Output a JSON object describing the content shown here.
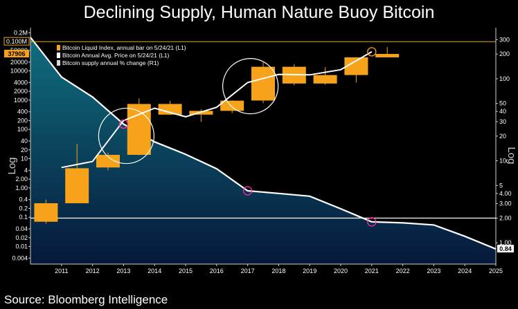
{
  "title": "Declining Supply, Human Nature Buoy Bitcoin",
  "source": "Source: Bloomberg Intelligence",
  "colors": {
    "background": "#000000",
    "bar": "#f7a21b",
    "price_line": "#ffffff",
    "supply_area_top": "#0f6e7e",
    "supply_area_bottom": "#06183a",
    "highlight_circle": "#ffffff",
    "marker": "#ff2fa8",
    "reference_line": "#ffffff",
    "current_tag": "#f7a21b"
  },
  "chart_data": {
    "type": "bar",
    "legend_position": "top-left",
    "grid": false,
    "legend": [
      {
        "label": "Bitcoin Liquid Index, annual bar on 5/24/21 (L1)",
        "swatch": "bar"
      },
      {
        "label": "Bitcoin Annual Avg. Price on 5/24/21 (L1)",
        "swatch": "line"
      },
      {
        "label": "Bitcoin supply annual % change (R1)",
        "swatch": "area"
      }
    ],
    "left_axis": {
      "label": "Log",
      "scale": "log",
      "range": [
        0.0025,
        300000
      ],
      "ticks": [
        {
          "value": 0.004,
          "label": "0.004"
        },
        {
          "value": 0.01,
          "label": "0.01"
        },
        {
          "value": 0.02,
          "label": "0.02"
        },
        {
          "value": 0.04,
          "label": "0.04"
        },
        {
          "value": 0.1,
          "label": "0.1"
        },
        {
          "value": 0.2,
          "label": "0.2"
        },
        {
          "value": 0.4,
          "label": "0.4"
        },
        {
          "value": 1,
          "label": "1.00"
        },
        {
          "value": 2,
          "label": "2.00"
        },
        {
          "value": 4,
          "label": "4"
        },
        {
          "value": 10,
          "label": "10"
        },
        {
          "value": 20,
          "label": "20"
        },
        {
          "value": 40,
          "label": "40"
        },
        {
          "value": 100,
          "label": "100"
        },
        {
          "value": 200,
          "label": "200"
        },
        {
          "value": 400,
          "label": "400"
        },
        {
          "value": 1000,
          "label": "1000"
        },
        {
          "value": 2000,
          "label": "2000"
        },
        {
          "value": 4000,
          "label": "4000"
        },
        {
          "value": 10000,
          "label": "10000"
        },
        {
          "value": 20000,
          "label": "20000"
        },
        {
          "value": 50000,
          "label": "50000"
        },
        {
          "value": 200000,
          "label": "0.2M"
        }
      ],
      "current_value": {
        "value": 37906,
        "label": "37906"
      },
      "reference_value": {
        "value": 100000,
        "label": "0.100M"
      }
    },
    "right_axis": {
      "label": "Log",
      "scale": "log",
      "range": [
        0.55,
        420
      ],
      "ticks": [
        {
          "value": 1,
          "label": "1.00"
        },
        {
          "value": 2,
          "label": "2.00"
        },
        {
          "value": 3,
          "label": "3.00"
        },
        {
          "value": 4,
          "label": "4.00"
        },
        {
          "value": 5,
          "label": "5"
        },
        {
          "value": 10,
          "label": "10"
        },
        {
          "value": 20,
          "label": "20"
        },
        {
          "value": 30,
          "label": "30"
        },
        {
          "value": 40,
          "label": "40"
        },
        {
          "value": 50,
          "label": "50"
        },
        {
          "value": 100,
          "label": "100"
        },
        {
          "value": 200,
          "label": "200"
        },
        {
          "value": 300,
          "label": "300"
        }
      ],
      "current_value": {
        "value": 0.84,
        "label": "0.84"
      },
      "reference_value": {
        "value": 2,
        "label": "2.00"
      }
    },
    "x_axis": {
      "range": [
        2010,
        2025
      ],
      "ticks": [
        2011,
        2012,
        2013,
        2014,
        2015,
        2016,
        2017,
        2018,
        2019,
        2020,
        2021,
        2022,
        2023,
        2024,
        2025
      ]
    },
    "series": [
      {
        "name": "Bitcoin Liquid Index, annual bar on 5/24/21 (L1)",
        "type": "candlestick",
        "axis": "left",
        "points": [
          {
            "year": 2010,
            "open": 0.07,
            "close": 0.3,
            "high": 0.4,
            "low": 0.06
          },
          {
            "year": 2011,
            "open": 0.3,
            "close": 4.7,
            "high": 32,
            "low": 0.3
          },
          {
            "year": 2012,
            "open": 5,
            "close": 13.5,
            "high": 16,
            "low": 4
          },
          {
            "year": 2013,
            "open": 13.5,
            "close": 740,
            "high": 1150,
            "low": 13
          },
          {
            "year": 2014,
            "open": 740,
            "close": 320,
            "high": 950,
            "low": 310
          },
          {
            "year": 2015,
            "open": 320,
            "close": 430,
            "high": 490,
            "low": 180
          },
          {
            "year": 2016,
            "open": 430,
            "close": 960,
            "high": 1000,
            "low": 360
          },
          {
            "year": 2017,
            "open": 970,
            "close": 13800,
            "high": 19500,
            "low": 780
          },
          {
            "year": 2018,
            "open": 13800,
            "close": 3700,
            "high": 17000,
            "low": 3200
          },
          {
            "year": 2019,
            "open": 3700,
            "close": 7200,
            "high": 13500,
            "low": 3400
          },
          {
            "year": 2020,
            "open": 7200,
            "close": 29000,
            "high": 29300,
            "low": 4000
          },
          {
            "year": 2021,
            "open": 29000,
            "close": 37906,
            "high": 64800,
            "low": 29000
          }
        ]
      },
      {
        "name": "Bitcoin Annual Avg. Price on 5/24/21 (L1)",
        "type": "line",
        "axis": "left",
        "points": [
          {
            "year": 2011,
            "value": 5
          },
          {
            "year": 2012,
            "value": 8
          },
          {
            "year": 2013,
            "value": 200
          },
          {
            "year": 2014,
            "value": 530
          },
          {
            "year": 2015,
            "value": 270
          },
          {
            "year": 2016,
            "value": 570
          },
          {
            "year": 2017,
            "value": 4000
          },
          {
            "year": 2018,
            "value": 7600
          },
          {
            "year": 2019,
            "value": 7300
          },
          {
            "year": 2020,
            "value": 11000
          },
          {
            "year": 2021,
            "value": 45000
          }
        ]
      },
      {
        "name": "Bitcoin supply annual % change (R1)",
        "type": "area",
        "axis": "right",
        "points": [
          {
            "year": 2010,
            "value": 320
          },
          {
            "year": 2011,
            "value": 105
          },
          {
            "year": 2012,
            "value": 60
          },
          {
            "year": 2013,
            "value": 28
          },
          {
            "year": 2014,
            "value": 17
          },
          {
            "year": 2015,
            "value": 12
          },
          {
            "year": 2016,
            "value": 8
          },
          {
            "year": 2017,
            "value": 4.3
          },
          {
            "year": 2018,
            "value": 4.0
          },
          {
            "year": 2019,
            "value": 3.7
          },
          {
            "year": 2020,
            "value": 2.6
          },
          {
            "year": 2021,
            "value": 1.8
          },
          {
            "year": 2022,
            "value": 1.75
          },
          {
            "year": 2023,
            "value": 1.65
          },
          {
            "year": 2024,
            "value": 1.2
          },
          {
            "year": 2025,
            "value": 0.84
          }
        ]
      }
    ],
    "annotations": [
      {
        "type": "circle",
        "year": 2013,
        "value": 60,
        "axis": "left"
      },
      {
        "type": "circle",
        "year": 2017,
        "value": 3000,
        "axis": "left"
      },
      {
        "type": "marker",
        "year": 2013,
        "value": 28,
        "axis": "right",
        "color": "marker"
      },
      {
        "type": "marker",
        "year": 2017,
        "value": 4.3,
        "axis": "right",
        "color": "marker"
      },
      {
        "type": "marker",
        "year": 2021,
        "value": 1.8,
        "axis": "right",
        "color": "marker"
      },
      {
        "type": "marker",
        "year": 2021,
        "value": 45000,
        "axis": "left",
        "color": "current_tag"
      }
    ]
  }
}
